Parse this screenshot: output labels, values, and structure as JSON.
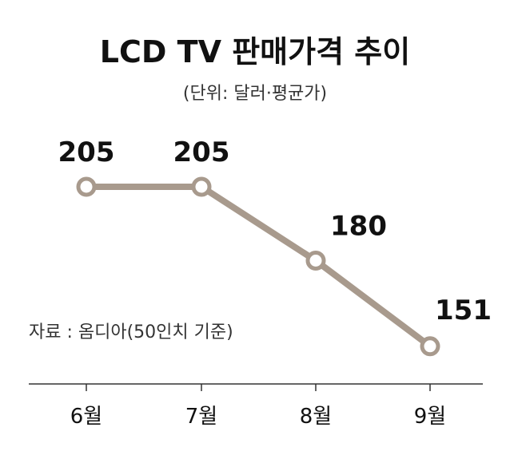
{
  "chart_data": {
    "type": "line",
    "title": "LCD TV 판매가격 추이",
    "subtitle": "(단위: 달러·평균가)",
    "source": "자료 : 옴디아(50인치 기준)",
    "categories": [
      "6월",
      "7월",
      "8월",
      "9월"
    ],
    "series": [
      {
        "values": [
          205,
          205,
          180,
          151
        ],
        "labels": [
          "205",
          "205",
          "180",
          "151"
        ]
      }
    ],
    "ylim": [
      140,
      215
    ],
    "grid": false,
    "legend": "none",
    "colors": {
      "line": "#a89a8d",
      "marker_fill": "#ffffff",
      "axis": "#333333",
      "text": "#111111"
    }
  }
}
